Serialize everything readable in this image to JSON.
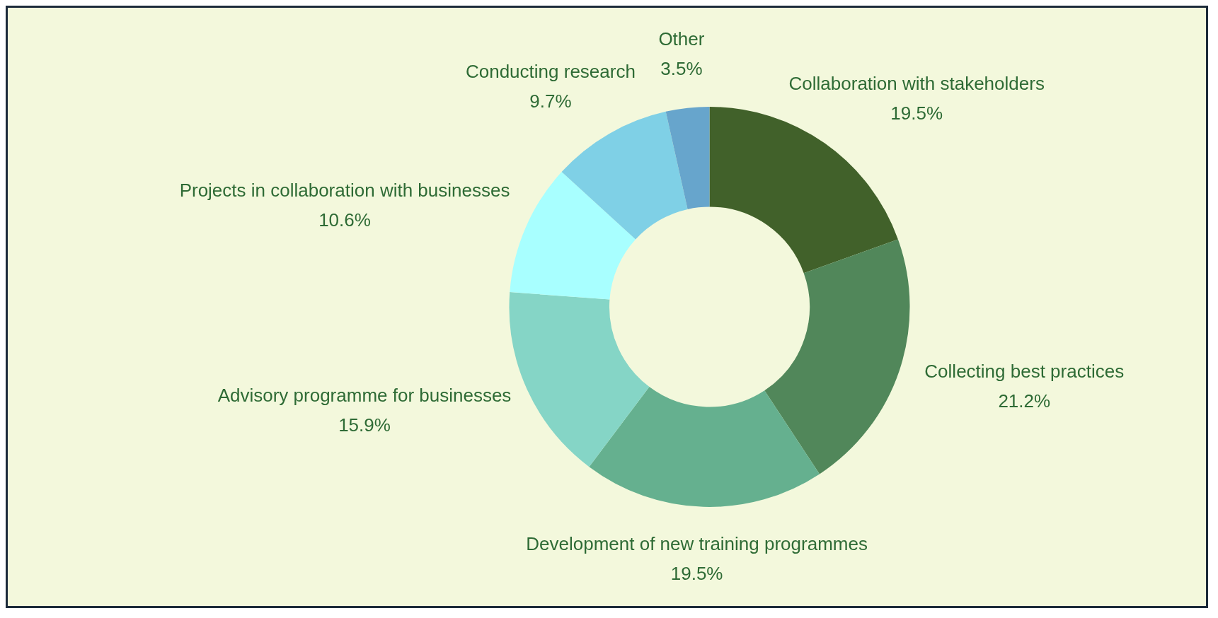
{
  "chart_data": {
    "type": "donut",
    "categories": [
      "Collaboration with stakeholders",
      "Collecting best practices",
      "Development of new training programmes",
      "Advisory programme for businesses",
      "Projects in collaboration with businesses",
      "Conducting research",
      "Other"
    ],
    "values": [
      19.5,
      21.2,
      19.5,
      15.9,
      10.6,
      9.7,
      3.5
    ],
    "colors": [
      "#41612a",
      "#51875a",
      "#65b08f",
      "#85d5c6",
      "#a8ffff",
      "#7fd0e6",
      "#67a5cc"
    ],
    "value_labels": [
      "19.5%",
      "21.2%",
      "19.5%",
      "15.9%",
      "10.6%",
      "9.7%",
      "3.5%"
    ],
    "legend": false
  }
}
